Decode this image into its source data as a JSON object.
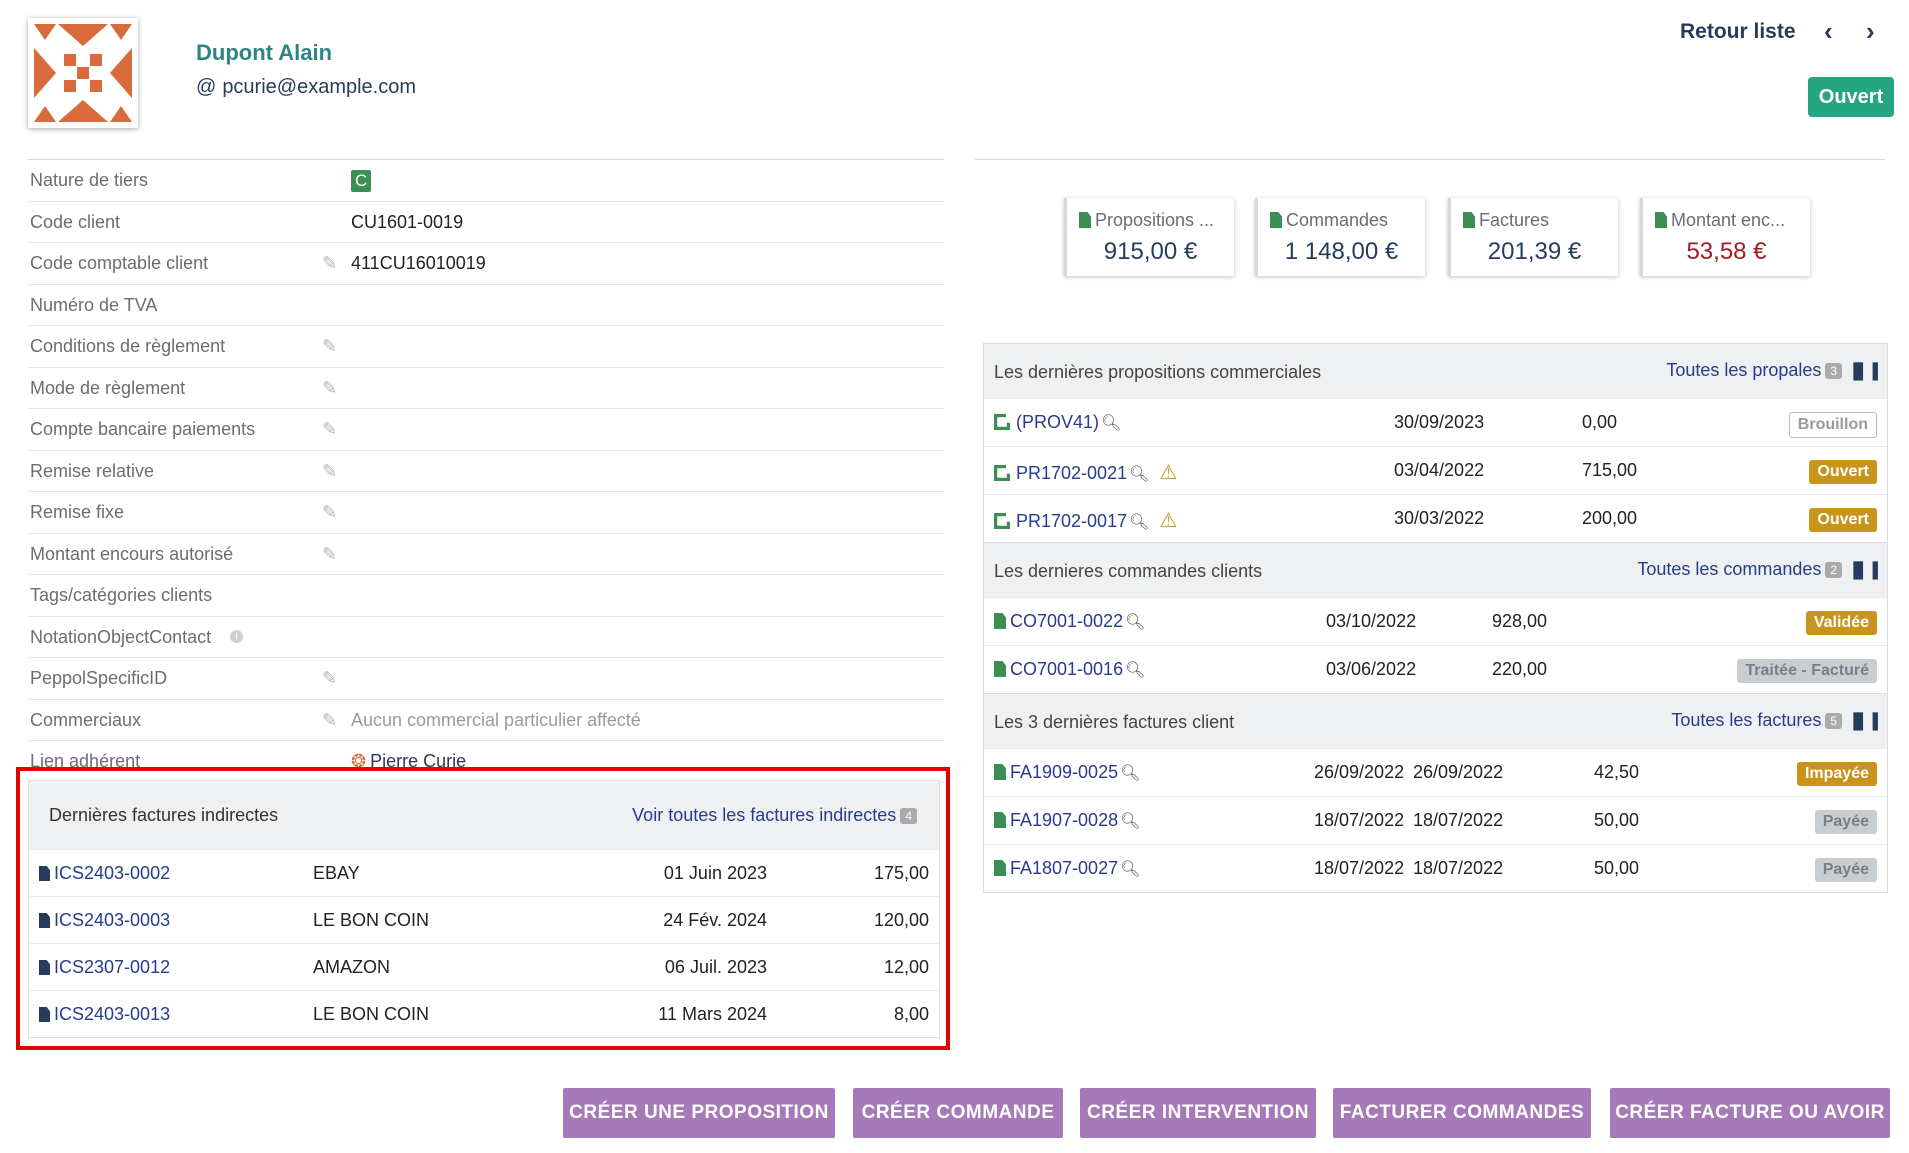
{
  "header": {
    "name": "Dupont Alain",
    "email": "pcurie@example.com",
    "back_label": "Retour liste",
    "status": "Ouvert"
  },
  "fields": [
    {
      "label": "Nature de tiers",
      "value": "C",
      "editable": false
    },
    {
      "label": "Code client",
      "value": "CU1601-0019",
      "editable": false
    },
    {
      "label": "Code comptable client",
      "value": "411CU16010019",
      "editable": true
    },
    {
      "label": "Numéro de TVA",
      "value": "",
      "editable": false
    },
    {
      "label": "Conditions de règlement",
      "value": "",
      "editable": true
    },
    {
      "label": "Mode de règlement",
      "value": "",
      "editable": true
    },
    {
      "label": "Compte bancaire paiements",
      "value": "",
      "editable": true
    },
    {
      "label": "Remise relative",
      "value": "",
      "editable": true
    },
    {
      "label": "Remise fixe",
      "value": "",
      "editable": true
    },
    {
      "label": "Montant encours autorisé",
      "value": "",
      "editable": true
    },
    {
      "label": "Tags/catégories clients",
      "value": "",
      "editable": false
    },
    {
      "label": "NotationObjectContact",
      "value": "",
      "editable": false
    },
    {
      "label": "PeppolSpecificID",
      "value": "",
      "editable": true
    },
    {
      "label": "Commerciaux",
      "value": "Aucun commercial particulier affecté",
      "editable": true
    },
    {
      "label": "Lien adhérent",
      "value": "Pierre Curie",
      "editable": false
    }
  ],
  "indirect": {
    "title": "Dernières factures indirectes",
    "link": "Voir toutes les factures indirectes",
    "count": "4",
    "rows": [
      {
        "ref": "ICS2403-0002",
        "vendor": "EBAY",
        "date": "01 Juin 2023",
        "amount": "175,00"
      },
      {
        "ref": "ICS2403-0003",
        "vendor": "LE BON COIN",
        "date": "24 Fév. 2024",
        "amount": "120,00"
      },
      {
        "ref": "ICS2307-0012",
        "vendor": "AMAZON",
        "date": "06 Juil. 2023",
        "amount": "12,00"
      },
      {
        "ref": "ICS2403-0013",
        "vendor": "LE BON COIN",
        "date": "11 Mars 2024",
        "amount": "8,00"
      }
    ]
  },
  "stats": [
    {
      "label": "Propositions ...",
      "value": "915,00 €"
    },
    {
      "label": "Commandes",
      "value": "1 148,00 €"
    },
    {
      "label": "Factures",
      "value": "201,39 €"
    },
    {
      "label": "Montant enc...",
      "value": "53,58 €"
    }
  ],
  "proposals": {
    "title": "Les dernières propositions commerciales",
    "link": "Toutes les propales",
    "count": "3",
    "rows": [
      {
        "ref": "(PROV41)",
        "date": "30/09/2023",
        "amount": "0,00",
        "status": "Brouillon"
      },
      {
        "ref": "PR1702-0021",
        "date": "03/04/2022",
        "amount": "715,00",
        "status": "Ouvert"
      },
      {
        "ref": "PR1702-0017",
        "date": "30/03/2022",
        "amount": "200,00",
        "status": "Ouvert"
      }
    ]
  },
  "orders": {
    "title": "Les dernieres commandes clients",
    "link": "Toutes les commandes",
    "count": "2",
    "rows": [
      {
        "ref": "CO7001-0022",
        "date": "03/10/2022",
        "amount": "928,00",
        "status": "Validée"
      },
      {
        "ref": "CO7001-0016",
        "date": "03/06/2022",
        "amount": "220,00",
        "status": "Traitée - Facturé"
      }
    ]
  },
  "invoices": {
    "title": "Les 3 dernières factures client",
    "link": "Toutes les factures",
    "count": "5",
    "rows": [
      {
        "ref": "FA1909-0025",
        "date": "26/09/2022",
        "date2": "26/09/2022",
        "amount": "42,50",
        "status": "Impayée"
      },
      {
        "ref": "FA1907-0028",
        "date": "18/07/2022",
        "date2": "18/07/2022",
        "amount": "50,00",
        "status": "Payée"
      },
      {
        "ref": "FA1807-0027",
        "date": "18/07/2022",
        "date2": "18/07/2022",
        "amount": "50,00",
        "status": "Payée"
      }
    ]
  },
  "buttons": [
    "CRÉER UNE PROPOSITION",
    "CRÉER COMMANDE",
    "CRÉER INTERVENTION",
    "FACTURER COMMANDES",
    "CRÉER FACTURE OU AVOIR"
  ],
  "colors": {
    "accent": "#263c5c",
    "open": "#25a580",
    "warning": "#c8941b",
    "button": "#a67ab8",
    "highlight": "#e00000"
  }
}
